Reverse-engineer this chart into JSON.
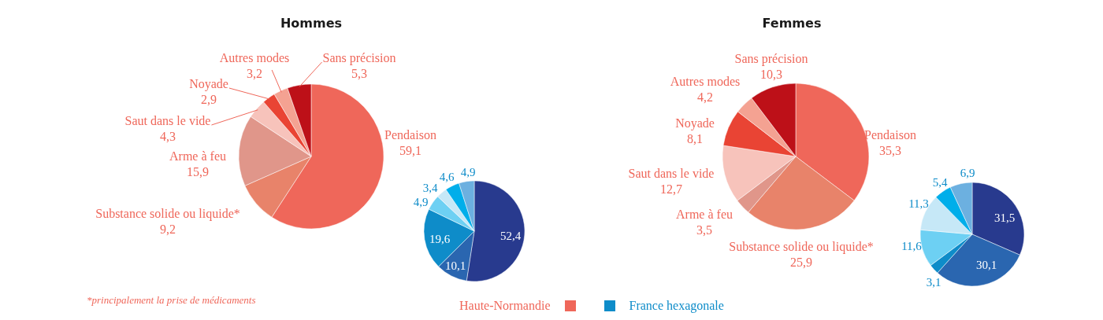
{
  "chart_data": [
    {
      "type": "pie",
      "title": "Hommes",
      "categories": [
        "Pendaison",
        "Substance solide ou liquide*",
        "Arme à feu",
        "Saut dans le vide",
        "Noyade",
        "Autres modes",
        "Sans précision"
      ],
      "data_labels": true,
      "legend": "bottom",
      "annotations": [
        "*principalement la prise de médicaments"
      ],
      "series": [
        {
          "name": "Haute-Normandie",
          "color": "#ef675a",
          "colors": [
            "#ef675a",
            "#e8836a",
            "#e0968a",
            "#f7c3bb",
            "#e94434",
            "#f4a292",
            "#bd1018"
          ],
          "values": [
            59.1,
            9.2,
            15.9,
            4.3,
            2.9,
            3.2,
            5.3
          ],
          "value_labels": [
            "59,1",
            "9,2",
            "15,9",
            "4,3",
            "2,9",
            "3,2",
            "5,3"
          ]
        },
        {
          "name": "France hexagonale",
          "color": "#0e8cc9",
          "colors": [
            "#283a8e",
            "#2a66b0",
            "#0e8cc9",
            "#6dd0f3",
            "#c6e8f7",
            "#00aeea",
            "#6cb0e0"
          ],
          "values": [
            52.4,
            10.1,
            19.6,
            4.9,
            3.4,
            4.6,
            4.9
          ],
          "value_labels": [
            "52,4",
            "10,1",
            "19,6",
            "4,9",
            "3,4",
            "4,6",
            "4,9"
          ]
        }
      ]
    },
    {
      "type": "pie",
      "title": "Femmes",
      "categories": [
        "Pendaison",
        "Substance solide ou liquide*",
        "Arme à feu",
        "Saut dans le vide",
        "Noyade",
        "Autres modes",
        "Sans précision"
      ],
      "data_labels": true,
      "series": [
        {
          "color": "#ef675a",
          "colors": [
            "#ef675a",
            "#e8836a",
            "#e0968a",
            "#f7c3bb",
            "#e94434",
            "#f4a292",
            "#bd1018"
          ],
          "values": [
            35.3,
            25.9,
            3.5,
            12.7,
            8.1,
            4.2,
            10.3
          ],
          "value_labels": [
            "35,3",
            "25,9",
            "3,5",
            "12,7",
            "8,1",
            "4,2",
            "10,3"
          ]
        },
        {
          "color": "#0e8cc9",
          "colors": [
            "#283a8e",
            "#2a66b0",
            "#0e8cc9",
            "#6dd0f3",
            "#c6e8f7",
            "#00aeea",
            "#6cb0e0"
          ],
          "values": [
            31.5,
            30.1,
            3.1,
            11.6,
            11.3,
            5.4,
            6.9
          ],
          "value_labels": [
            "31,5",
            "30,1",
            "3,1",
            "11,6",
            "11,3",
            "5,4",
            "6,9"
          ]
        }
      ]
    }
  ]
}
